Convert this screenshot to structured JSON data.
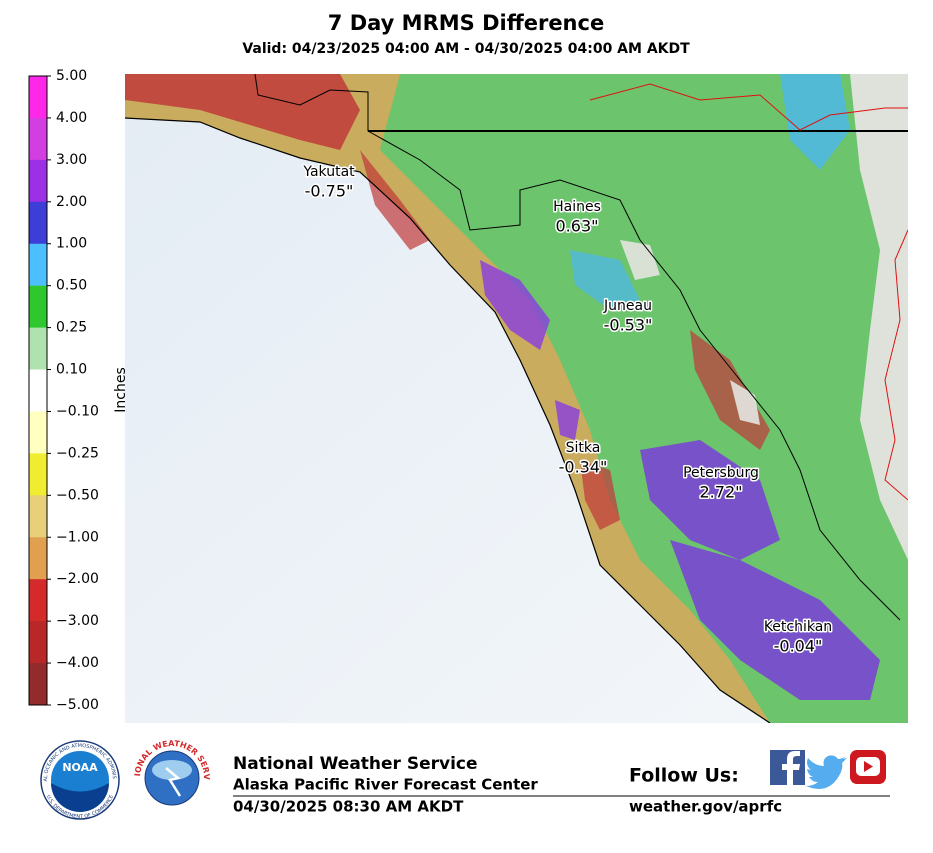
{
  "header": {
    "title": "7 Day MRMS Difference",
    "subtitle": "Valid: 04/23/2025 04:00 AM - 04/30/2025 04:00 AM AKDT"
  },
  "colorbar": {
    "label": "Inches",
    "ticks": [
      "5.00",
      "4.00",
      "3.00",
      "2.00",
      "1.00",
      "0.50",
      "0.25",
      "0.10",
      "−0.10",
      "−0.25",
      "−0.50",
      "−1.00",
      "−2.00",
      "−3.00",
      "−4.00",
      "−5.00"
    ],
    "colors": [
      "#ff28e8",
      "#d23ee0",
      "#9b30e6",
      "#3d3ed8",
      "#4cc0ff",
      "#2ec82e",
      "#b0e2b0",
      "#ffffff",
      "#ffffc0",
      "#f0ec30",
      "#e8d07a",
      "#e0a050",
      "#d42a2a",
      "#b82828",
      "#922c2c"
    ]
  },
  "map": {
    "locations": [
      {
        "name": "Yakutat",
        "value": "-0.75\""
      },
      {
        "name": "Haines",
        "value": "0.63\""
      },
      {
        "name": "Juneau",
        "value": "-0.53\""
      },
      {
        "name": "Sitka",
        "value": "-0.34\""
      },
      {
        "name": "Petersburg",
        "value": "2.72\""
      },
      {
        "name": "Ketchikan",
        "value": "-0.04\""
      }
    ]
  },
  "footer": {
    "noaa": "NOAA",
    "noaa_ring_top": "NATIONAL OCEANIC AND ATMOSPHERIC ADMINISTRATION",
    "noaa_ring_bottom": "U.S. DEPARTMENT OF COMMERCE",
    "nws_ring": "NATIONAL WEATHER SERVICE",
    "agency": "National Weather Service",
    "center": "Alaska Pacific River Forecast Center",
    "issued": "04/30/2025 08:30 AM AKDT",
    "follow": "Follow Us:",
    "url": "weather.gov/aprfc"
  }
}
